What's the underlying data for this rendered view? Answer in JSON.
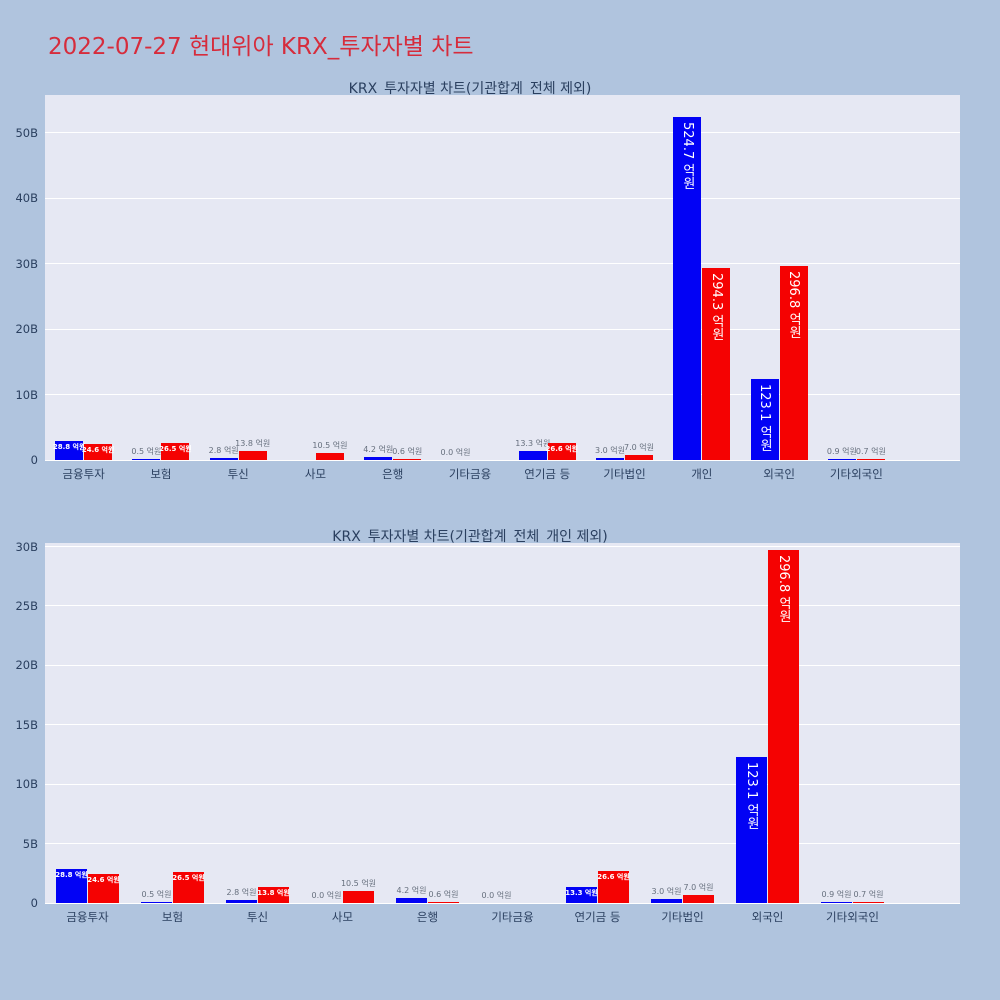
{
  "page": {
    "title": "2022-07-27 현대위아 KRX_투자자별 차트",
    "colors": {
      "background": "#b0c4de",
      "title": "#d62c3c",
      "plot_bg": "#e6e8f3",
      "grid": "#ffffff",
      "text": "#2a3f5f",
      "outside_label": "#666f7d",
      "bar_blue": "#0202f5",
      "bar_red": "#f50202"
    }
  },
  "chart_data": [
    {
      "type": "bar",
      "title": "KRX_투자자별 차트(기관합계_전체 제외)",
      "unit": "억원",
      "legend_position": "none",
      "grid": true,
      "categories": [
        "금융투자",
        "보험",
        "투신",
        "사모",
        "은행",
        "기타금융",
        "연기금 등",
        "기타법인",
        "개인",
        "외국인",
        "기타외국인"
      ],
      "series": [
        {
          "name": "blue",
          "color": "#0202f5",
          "values": [
            28.8,
            0.5,
            2.8,
            0.0,
            4.2,
            0.0,
            13.3,
            3.0,
            524.7,
            123.1,
            0.9
          ],
          "labels": [
            "28.8 억원",
            "0.5 억원",
            "2.8 억원",
            null,
            "4.2 억원",
            "0.0 억원",
            "13.3 억원",
            "3.0 억원",
            "524.7 억원",
            "123.1 억원",
            "0.9 억원"
          ]
        },
        {
          "name": "red",
          "color": "#f50202",
          "values": [
            24.6,
            26.5,
            13.8,
            10.5,
            0.6,
            0.0,
            26.6,
            7.0,
            294.3,
            296.8,
            0.7
          ],
          "labels": [
            "24.6 억원",
            "26.5 억원",
            "13.8 억원",
            "10.5 억원",
            "0.6 억원",
            null,
            "26.6 억원",
            "7.0 억원",
            "294.3 억원",
            "296.8 억원",
            "0.7 억원"
          ]
        }
      ],
      "y_axis": {
        "ticks": [
          "0",
          "10B",
          "20B",
          "30B",
          "40B",
          "50B"
        ],
        "tick_values_b": [
          0,
          10,
          20,
          30,
          40,
          50
        ],
        "ymax_b": 55.8,
        "ylim": [
          0,
          55.8
        ]
      }
    },
    {
      "type": "bar",
      "title": "KRX_투자자별 차트(기관합계_전체_개인 제외)",
      "unit": "억원",
      "legend_position": "none",
      "grid": true,
      "categories": [
        "금융투자",
        "보험",
        "투신",
        "사모",
        "은행",
        "기타금융",
        "연기금 등",
        "기타법인",
        "외국인",
        "기타외국인"
      ],
      "series": [
        {
          "name": "blue",
          "color": "#0202f5",
          "values": [
            28.8,
            0.5,
            2.8,
            0.0,
            4.2,
            0.0,
            13.3,
            3.0,
            123.1,
            0.9
          ],
          "labels": [
            "28.8 억원",
            "0.5 억원",
            "2.8 억원",
            "0.0 억원",
            "4.2 억원",
            "0.0 억원",
            "13.3 억원",
            "3.0 억원",
            "123.1 억원",
            "0.9 억원"
          ]
        },
        {
          "name": "red",
          "color": "#f50202",
          "values": [
            24.6,
            26.5,
            13.8,
            10.5,
            0.6,
            0.0,
            26.6,
            7.0,
            296.8,
            0.7
          ],
          "labels": [
            "24.6 억원",
            "26.5 억원",
            "13.8 억원",
            "10.5 억원",
            "0.6 억원",
            null,
            "26.6 억원",
            "7.0 억원",
            "296.8 억원",
            "0.7 억원"
          ]
        }
      ],
      "y_axis": {
        "ticks": [
          "0",
          "5B",
          "10B",
          "15B",
          "20B",
          "25B",
          "30B"
        ],
        "tick_values_b": [
          0,
          5,
          10,
          15,
          20,
          25,
          30
        ],
        "ymax_b": 30.3,
        "ylim": [
          0,
          30.3
        ]
      }
    }
  ]
}
